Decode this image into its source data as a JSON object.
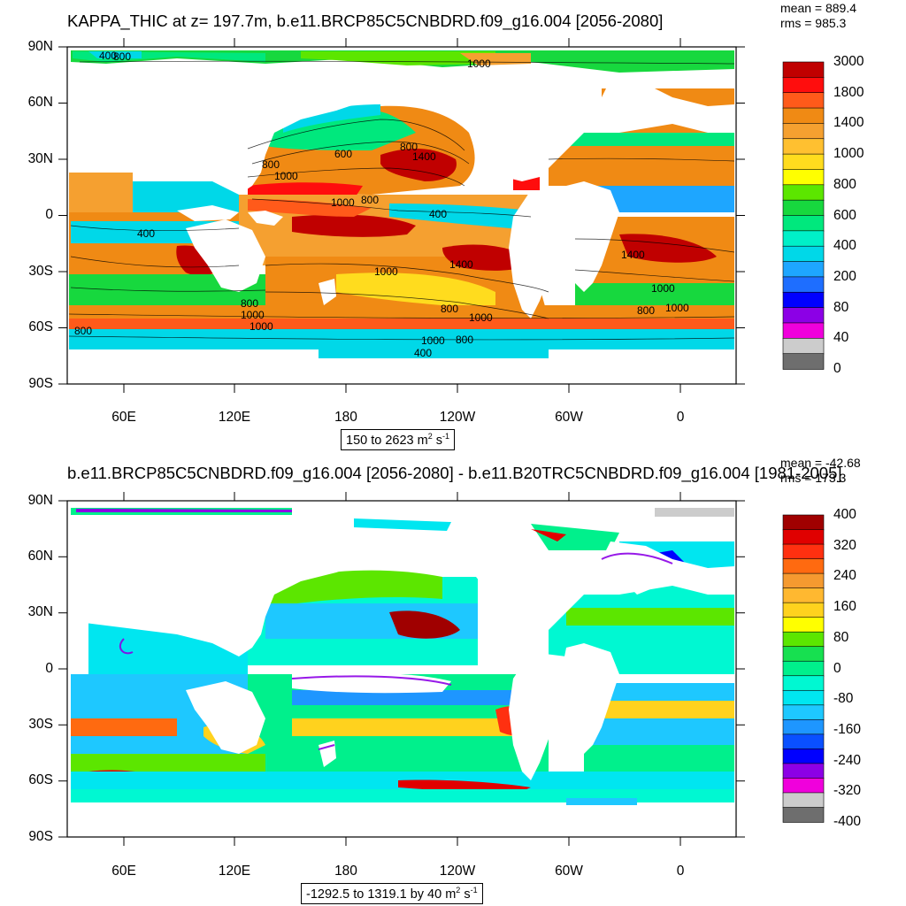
{
  "top": {
    "title": "KAPPA_THIC at z= 197.7m, b.e11.BRCP85C5CNBDRD.f09_g16.004 [2056-2080]",
    "mean": "mean = 889.4",
    "rms": "rms = 985.3",
    "range_text": "150 to 2623 m",
    "range_unit_sup": "2",
    "range_unit_s": " s",
    "range_unit_sup2": "-1",
    "colorbar_labels": [
      "3000",
      "1800",
      "1400",
      "1000",
      "800",
      "600",
      "400",
      "200",
      "80",
      "40",
      "0"
    ],
    "colorbar_colors": [
      "#c00000",
      "#ff0d0d",
      "#ff5a1a",
      "#f08a14",
      "#f5a030",
      "#ffc030",
      "#ffdc1e",
      "#ffff00",
      "#5ce600",
      "#17d83e",
      "#00e87d",
      "#00f0c8",
      "#00d8e8",
      "#1ea6ff",
      "#1e6eff",
      "#0000ff",
      "#8c00e6",
      "#f000dc",
      "#cccccc",
      "#6e6e6e"
    ],
    "contour_labels": [
      "800",
      "1000",
      "400",
      "800",
      "1000",
      "800",
      "600",
      "1000",
      "800",
      "1400",
      "1000",
      "400",
      "800",
      "400",
      "1400",
      "1000",
      "1400",
      "1000",
      "800",
      "800",
      "1000",
      "800",
      "1000",
      "1000",
      "800",
      "400",
      "1000"
    ]
  },
  "bottom": {
    "title": "b.e11.BRCP85C5CNBDRD.f09_g16.004 [2056-2080] - b.e11.B20TRC5CNBDRD.f09_g16.004 [1981-2005]",
    "mean": "mean = -42.68",
    "rms": "rms = 173.3",
    "range_text": "-1292.5 to 1319.1 by 40 m",
    "range_unit_sup": "2",
    "range_unit_s": " s",
    "range_unit_sup2": "-1",
    "colorbar_labels": [
      "400",
      "320",
      "240",
      "160",
      "80",
      "0",
      "-80",
      "-160",
      "-240",
      "-320",
      "-400"
    ],
    "colorbar_colors": [
      "#a00000",
      "#e00000",
      "#ff3010",
      "#ff6a10",
      "#f59a30",
      "#ffb830",
      "#ffd21e",
      "#ffff00",
      "#5ce600",
      "#17e050",
      "#00f08c",
      "#00f8d2",
      "#00e6f0",
      "#1ec8ff",
      "#1e96ff",
      "#0a50ff",
      "#0000ff",
      "#8c00e6",
      "#f000dc",
      "#cccccc",
      "#6e6e6e"
    ]
  },
  "axes": {
    "lat_labels": [
      "90N",
      "60N",
      "30N",
      "0",
      "30S",
      "60S",
      "90S"
    ],
    "lon_labels": [
      "60E",
      "120E",
      "180",
      "120W",
      "60W",
      "0"
    ]
  }
}
